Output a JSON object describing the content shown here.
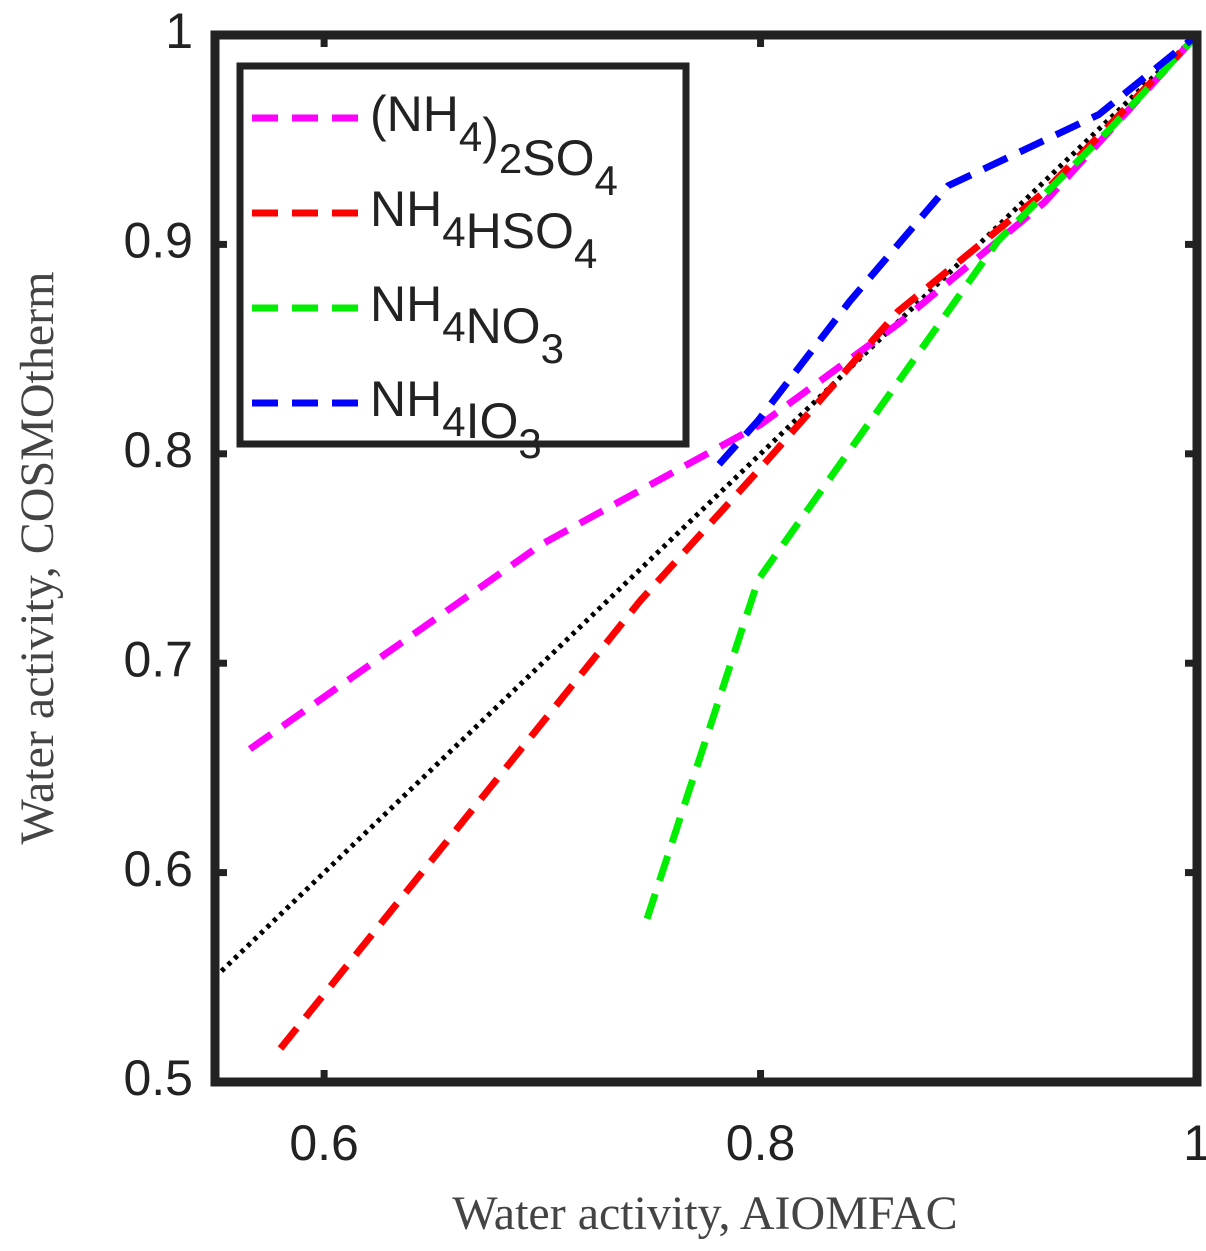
{
  "chart_data": {
    "type": "line",
    "xlabel": "Water activity, AIOMFAC",
    "ylabel": "Water activity, COSMOtherm",
    "xlim": [
      0.55,
      1
    ],
    "ylim": [
      0.5,
      1
    ],
    "xticks": [
      0.6,
      0.8,
      1
    ],
    "yticks": [
      0.5,
      0.6,
      0.7,
      0.8,
      0.9,
      1
    ],
    "identity_line": true,
    "legend": "upper left",
    "line_style": "dashed",
    "series": [
      {
        "name": "(NH4)2SO4",
        "color": "#ff00ff",
        "x": [
          0.566,
          0.7,
          0.8,
          0.863,
          0.93,
          1
        ],
        "values": [
          0.659,
          0.757,
          0.814,
          0.862,
          0.92,
          1
        ]
      },
      {
        "name": "NH4HSO4",
        "color": "#ff0000",
        "x": [
          0.58,
          0.745,
          0.799,
          0.863,
          0.93,
          1
        ],
        "values": [
          0.516,
          0.73,
          0.792,
          0.868,
          0.925,
          1
        ]
      },
      {
        "name": "NH4NO3",
        "color": "#00ee00",
        "x": [
          0.748,
          0.799,
          0.909,
          0.96,
          1
        ],
        "values": [
          0.578,
          0.74,
          0.902,
          0.955,
          1
        ]
      },
      {
        "name": "NH4IO3",
        "color": "#0000ff",
        "x": [
          0.781,
          0.799,
          0.841,
          0.886,
          0.955,
          1
        ],
        "values": [
          0.795,
          0.816,
          0.873,
          0.928,
          0.962,
          1
        ]
      }
    ]
  }
}
